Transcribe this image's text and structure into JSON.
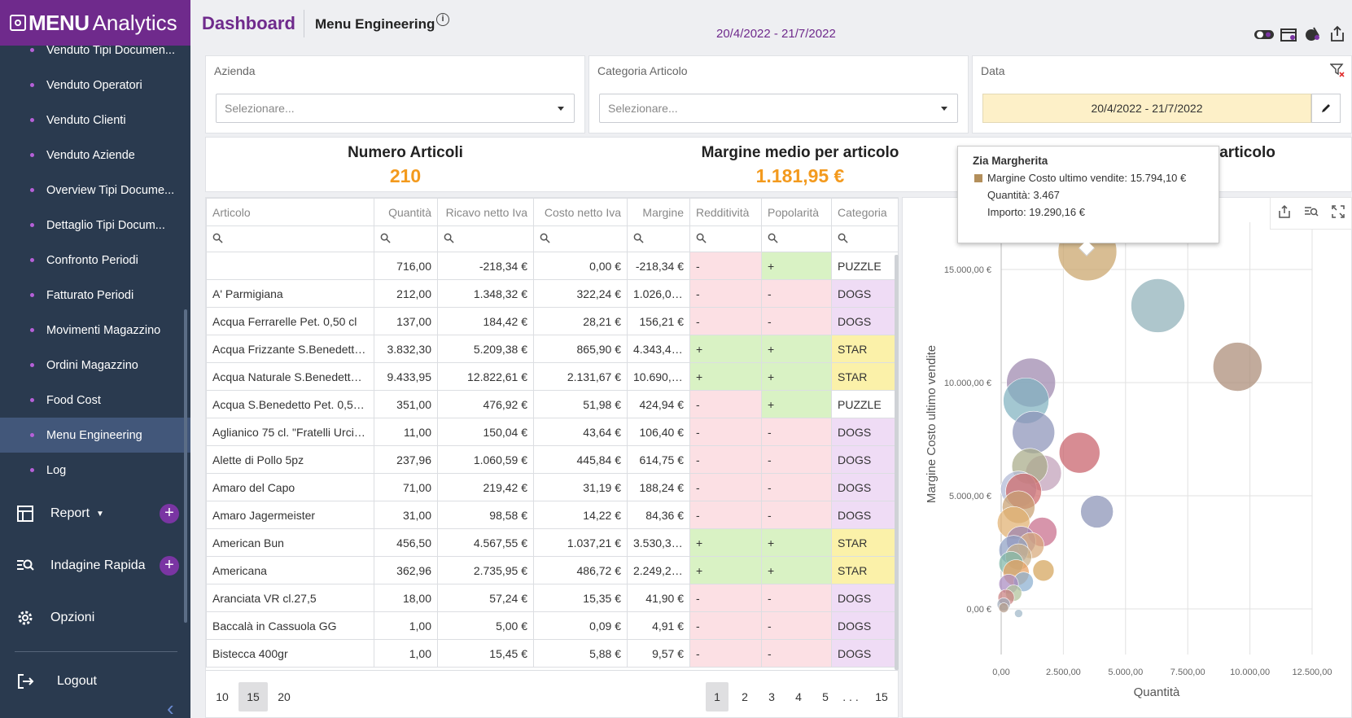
{
  "brand": {
    "part1": "MENU",
    "part2": "Analytics"
  },
  "sidebar": {
    "items": [
      {
        "label": "Venduto Tipi Documen..."
      },
      {
        "label": "Venduto Operatori"
      },
      {
        "label": "Venduto Clienti"
      },
      {
        "label": "Venduto Aziende"
      },
      {
        "label": "Overview Tipi Docume..."
      },
      {
        "label": "Dettaglio Tipi Docum..."
      },
      {
        "label": "Confronto Periodi"
      },
      {
        "label": "Fatturato Periodi"
      },
      {
        "label": "Movimenti Magazzino"
      },
      {
        "label": "Ordini Magazzino"
      },
      {
        "label": "Food Cost"
      },
      {
        "label": "Menu Engineering",
        "active": true
      },
      {
        "label": "Log"
      }
    ],
    "sections": [
      {
        "label": "Report",
        "icon": "table-icon"
      },
      {
        "label": "Indagine Rapida",
        "icon": "quick-search-icon"
      },
      {
        "label": "Opzioni",
        "icon": "gear-icon"
      }
    ],
    "logout": "Logout"
  },
  "header": {
    "title": "Dashboard",
    "page": "Menu Engineering",
    "info": "i",
    "date_range": "20/4/2022 - 21/7/2022"
  },
  "filters": {
    "azienda": {
      "label": "Azienda",
      "placeholder": "Selezionare..."
    },
    "categoria": {
      "label": "Categoria Articolo",
      "placeholder": "Selezionare..."
    },
    "data": {
      "label": "Data",
      "value": "20/4/2022 - 21/7/2022"
    }
  },
  "kpi": [
    {
      "label": "Numero Articoli",
      "value": "210"
    },
    {
      "label": "Margine medio per articolo",
      "value": "1.181,95 €"
    },
    {
      "label": "er articolo",
      "value": ""
    }
  ],
  "grid": {
    "columns": [
      "Articolo",
      "Quantità",
      "Ricavo netto Iva",
      "Costo netto Iva",
      "Margine",
      "Redditività",
      "Popolarità",
      "Categoria"
    ],
    "rows": [
      [
        "",
        "716,00",
        "-218,34 €",
        "0,00 €",
        "-218,34 €",
        "-",
        "+",
        "PUZZLE"
      ],
      [
        "A' Parmigiana",
        "212,00",
        "1.348,32 €",
        "322,24 €",
        "1.026,08...",
        "-",
        "-",
        "DOGS"
      ],
      [
        "Acqua Ferrarelle Pet. 0,50 cl",
        "137,00",
        "184,42 €",
        "28,21 €",
        "156,21 €",
        "-",
        "-",
        "DOGS"
      ],
      [
        "Acqua Frizzante S.Benedetto ...",
        "3.832,30",
        "5.209,38 €",
        "865,90 €",
        "4.343,48...",
        "+",
        "+",
        "STAR"
      ],
      [
        "Acqua Naturale S.Benedetto ...",
        "9.433,95",
        "12.822,61 €",
        "2.131,67 €",
        "10.690,9...",
        "+",
        "+",
        "STAR"
      ],
      [
        "Acqua S.Benedetto Pet. 0,50 cl",
        "351,00",
        "476,92 €",
        "51,98 €",
        "424,94 €",
        "-",
        "+",
        "PUZZLE"
      ],
      [
        "Aglianico 75 cl. \"Fratelli Urciu...",
        "11,00",
        "150,04 €",
        "43,64 €",
        "106,40 €",
        "-",
        "-",
        "DOGS"
      ],
      [
        "Alette di Pollo 5pz",
        "237,96",
        "1.060,59 €",
        "445,84 €",
        "614,75 €",
        "-",
        "-",
        "DOGS"
      ],
      [
        "Amaro del Capo",
        "71,00",
        "219,42 €",
        "31,19 €",
        "188,24 €",
        "-",
        "-",
        "DOGS"
      ],
      [
        "Amaro Jagermeister",
        "31,00",
        "98,58 €",
        "14,22 €",
        "84,36 €",
        "-",
        "-",
        "DOGS"
      ],
      [
        "American Bun",
        "456,50",
        "4.567,55 €",
        "1.037,21 €",
        "3.530,34...",
        "+",
        "+",
        "STAR"
      ],
      [
        "Americana",
        "362,96",
        "2.735,95 €",
        "486,72 €",
        "2.249,23...",
        "+",
        "+",
        "STAR"
      ],
      [
        "Aranciata VR cl.27,5",
        "18,00",
        "57,24 €",
        "15,35 €",
        "41,90 €",
        "-",
        "-",
        "DOGS"
      ],
      [
        "Baccalà in Cassuola GG",
        "1,00",
        "5,00 €",
        "0,09 €",
        "4,91 €",
        "-",
        "-",
        "DOGS"
      ],
      [
        "Bistecca 400gr",
        "1,00",
        "15,45 €",
        "5,88 €",
        "9,57 €",
        "-",
        "-",
        "DOGS"
      ]
    ],
    "page_sizes": [
      "10",
      "15",
      "20"
    ],
    "pages": [
      "1",
      "2",
      "3",
      "4",
      "5",
      ". . .",
      "15"
    ],
    "current_page": "1",
    "current_size": "15"
  },
  "tooltip": {
    "title": "Zia Margherita",
    "line1": "Margine Costo ultimo vendite: 15.794,10 €",
    "line2": "Quantità: 3.467",
    "line3": "Importo: 19.290,16 €",
    "swatch_color": "#b38f5b"
  },
  "chart_data": {
    "type": "scatter",
    "xlabel": "Quantità",
    "ylabel": "Margine Costo ultimo vendite",
    "xlim": [
      0,
      12500
    ],
    "ylim": [
      -500,
      17500
    ],
    "x_ticks": [
      "0,00",
      "2.500,00",
      "5.000,00",
      "7.500,00",
      "10.000,00",
      "12.500,00"
    ],
    "y_ticks": [
      "0,00 €",
      "5.000,00 €",
      "10.000,00 €",
      "15.000,00 €"
    ],
    "y_tick_values": [
      0,
      5000,
      10000,
      15000
    ],
    "x_tick_values": [
      0,
      2500,
      5000,
      7500,
      10000,
      12500
    ],
    "points": [
      {
        "x": 3467,
        "y": 15794,
        "r": 36,
        "color": "#c9a46a"
      },
      {
        "x": 6300,
        "y": 13400,
        "r": 33,
        "color": "#8fb0b8"
      },
      {
        "x": 9500,
        "y": 10700,
        "r": 30,
        "color": "#ab8a76"
      },
      {
        "x": 1200,
        "y": 10000,
        "r": 30,
        "color": "#9c86ad"
      },
      {
        "x": 1000,
        "y": 9200,
        "r": 28,
        "color": "#7fb1bf"
      },
      {
        "x": 1300,
        "y": 7800,
        "r": 26,
        "color": "#8c93b8"
      },
      {
        "x": 3150,
        "y": 6900,
        "r": 25,
        "color": "#c7606a"
      },
      {
        "x": 1700,
        "y": 6000,
        "r": 22,
        "color": "#c0a0b8"
      },
      {
        "x": 1150,
        "y": 6300,
        "r": 22,
        "color": "#a7ab88"
      },
      {
        "x": 700,
        "y": 5300,
        "r": 22,
        "color": "#b0b8d6"
      },
      {
        "x": 900,
        "y": 5200,
        "r": 22,
        "color": "#cf6a6a"
      },
      {
        "x": 3850,
        "y": 4300,
        "r": 20,
        "color": "#8991b6"
      },
      {
        "x": 700,
        "y": 4500,
        "r": 20,
        "color": "#c8a070"
      },
      {
        "x": 500,
        "y": 3800,
        "r": 20,
        "color": "#e0b070"
      },
      {
        "x": 1650,
        "y": 3400,
        "r": 18,
        "color": "#c86c8a"
      },
      {
        "x": 800,
        "y": 3000,
        "r": 18,
        "color": "#9b82b0"
      },
      {
        "x": 1200,
        "y": 2800,
        "r": 16,
        "color": "#d8a97a"
      },
      {
        "x": 500,
        "y": 2600,
        "r": 18,
        "color": "#8ea0c4"
      },
      {
        "x": 700,
        "y": 2300,
        "r": 16,
        "color": "#c9b08a"
      },
      {
        "x": 400,
        "y": 2000,
        "r": 15,
        "color": "#7fb7a8"
      },
      {
        "x": 1700,
        "y": 1700,
        "r": 13,
        "color": "#d4a45a"
      },
      {
        "x": 600,
        "y": 1600,
        "r": 16,
        "color": "#e8a060"
      },
      {
        "x": 900,
        "y": 1200,
        "r": 12,
        "color": "#8aaed0"
      },
      {
        "x": 300,
        "y": 1100,
        "r": 12,
        "color": "#a98ac0"
      },
      {
        "x": 500,
        "y": 700,
        "r": 10,
        "color": "#b0c29a"
      },
      {
        "x": 200,
        "y": 500,
        "r": 10,
        "color": "#c98080"
      },
      {
        "x": 100,
        "y": 200,
        "r": 8,
        "color": "#9ea9b9"
      },
      {
        "x": 700,
        "y": -200,
        "r": 5,
        "color": "#9fb7c7"
      },
      {
        "x": 100,
        "y": 50,
        "r": 6,
        "color": "#b49b8a"
      }
    ]
  },
  "colors": {
    "brand": "#6f2a8c",
    "sidebar": "#2a3a4f",
    "kpi_value": "#f39a1e",
    "negative": "#fce0e4",
    "positive": "#d9f2c4",
    "dogs": "#efdcf5",
    "star": "#fbf1a9"
  }
}
